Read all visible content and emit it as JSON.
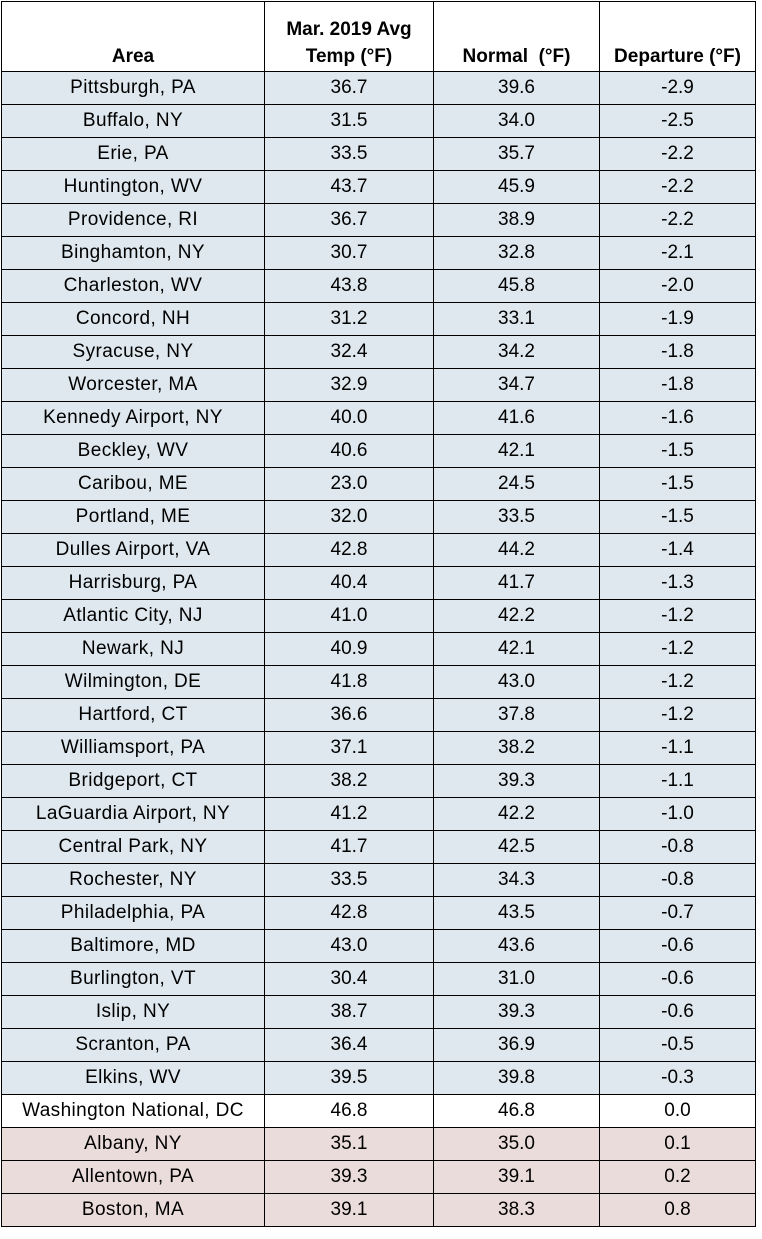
{
  "table": {
    "headers": {
      "area": "Area",
      "avg_line1": "Mar. 2019 Avg",
      "avg_line2": "Temp (°F)",
      "normal": "Normal  (°F)",
      "departure": "Departure (°F)"
    },
    "colors": {
      "below_normal": "#dee8ee",
      "at_normal": "#ffffff",
      "above_normal": "#ebdcdc"
    },
    "rows": [
      {
        "area": "Pittsburgh, PA",
        "avg": "36.7",
        "normal": "39.6",
        "departure": "-2.9",
        "tone": "neg"
      },
      {
        "area": "Buffalo, NY",
        "avg": "31.5",
        "normal": "34.0",
        "departure": "-2.5",
        "tone": "neg"
      },
      {
        "area": "Erie, PA",
        "avg": "33.5",
        "normal": "35.7",
        "departure": "-2.2",
        "tone": "neg"
      },
      {
        "area": "Huntington, WV",
        "avg": "43.7",
        "normal": "45.9",
        "departure": "-2.2",
        "tone": "neg"
      },
      {
        "area": "Providence, RI",
        "avg": "36.7",
        "normal": "38.9",
        "departure": "-2.2",
        "tone": "neg"
      },
      {
        "area": "Binghamton, NY",
        "avg": "30.7",
        "normal": "32.8",
        "departure": "-2.1",
        "tone": "neg"
      },
      {
        "area": "Charleston, WV",
        "avg": "43.8",
        "normal": "45.8",
        "departure": "-2.0",
        "tone": "neg"
      },
      {
        "area": "Concord, NH",
        "avg": "31.2",
        "normal": "33.1",
        "departure": "-1.9",
        "tone": "neg"
      },
      {
        "area": "Syracuse, NY",
        "avg": "32.4",
        "normal": "34.2",
        "departure": "-1.8",
        "tone": "neg"
      },
      {
        "area": "Worcester, MA",
        "avg": "32.9",
        "normal": "34.7",
        "departure": "-1.8",
        "tone": "neg"
      },
      {
        "area": "Kennedy Airport, NY",
        "avg": "40.0",
        "normal": "41.6",
        "departure": "-1.6",
        "tone": "neg"
      },
      {
        "area": "Beckley, WV",
        "avg": "40.6",
        "normal": "42.1",
        "departure": "-1.5",
        "tone": "neg"
      },
      {
        "area": "Caribou, ME",
        "avg": "23.0",
        "normal": "24.5",
        "departure": "-1.5",
        "tone": "neg"
      },
      {
        "area": "Portland, ME",
        "avg": "32.0",
        "normal": "33.5",
        "departure": "-1.5",
        "tone": "neg"
      },
      {
        "area": "Dulles Airport, VA",
        "avg": "42.8",
        "normal": "44.2",
        "departure": "-1.4",
        "tone": "neg"
      },
      {
        "area": "Harrisburg, PA",
        "avg": "40.4",
        "normal": "41.7",
        "departure": "-1.3",
        "tone": "neg"
      },
      {
        "area": "Atlantic City, NJ",
        "avg": "41.0",
        "normal": "42.2",
        "departure": "-1.2",
        "tone": "neg"
      },
      {
        "area": "Newark, NJ",
        "avg": "40.9",
        "normal": "42.1",
        "departure": "-1.2",
        "tone": "neg"
      },
      {
        "area": "Wilmington, DE",
        "avg": "41.8",
        "normal": "43.0",
        "departure": "-1.2",
        "tone": "neg"
      },
      {
        "area": "Hartford, CT",
        "avg": "36.6",
        "normal": "37.8",
        "departure": "-1.2",
        "tone": "neg"
      },
      {
        "area": "Williamsport, PA",
        "avg": "37.1",
        "normal": "38.2",
        "departure": "-1.1",
        "tone": "neg"
      },
      {
        "area": "Bridgeport, CT",
        "avg": "38.2",
        "normal": "39.3",
        "departure": "-1.1",
        "tone": "neg"
      },
      {
        "area": "LaGuardia Airport, NY",
        "avg": "41.2",
        "normal": "42.2",
        "departure": "-1.0",
        "tone": "neg"
      },
      {
        "area": "Central Park, NY",
        "avg": "41.7",
        "normal": "42.5",
        "departure": "-0.8",
        "tone": "neg"
      },
      {
        "area": "Rochester, NY",
        "avg": "33.5",
        "normal": "34.3",
        "departure": "-0.8",
        "tone": "neg"
      },
      {
        "area": "Philadelphia, PA",
        "avg": "42.8",
        "normal": "43.5",
        "departure": "-0.7",
        "tone": "neg"
      },
      {
        "area": "Baltimore, MD",
        "avg": "43.0",
        "normal": "43.6",
        "departure": "-0.6",
        "tone": "neg"
      },
      {
        "area": "Burlington, VT",
        "avg": "30.4",
        "normal": "31.0",
        "departure": "-0.6",
        "tone": "neg"
      },
      {
        "area": "Islip, NY",
        "avg": "38.7",
        "normal": "39.3",
        "departure": "-0.6",
        "tone": "neg"
      },
      {
        "area": "Scranton, PA",
        "avg": "36.4",
        "normal": "36.9",
        "departure": "-0.5",
        "tone": "neg"
      },
      {
        "area": "Elkins, WV",
        "avg": "39.5",
        "normal": "39.8",
        "departure": "-0.3",
        "tone": "neg"
      },
      {
        "area": "Washington National, DC",
        "avg": "46.8",
        "normal": "46.8",
        "departure": "0.0",
        "tone": "zero"
      },
      {
        "area": "Albany, NY",
        "avg": "35.1",
        "normal": "35.0",
        "departure": "0.1",
        "tone": "pos"
      },
      {
        "area": "Allentown, PA",
        "avg": "39.3",
        "normal": "39.1",
        "departure": "0.2",
        "tone": "pos"
      },
      {
        "area": "Boston, MA",
        "avg": "39.1",
        "normal": "38.3",
        "departure": "0.8",
        "tone": "pos"
      }
    ]
  }
}
